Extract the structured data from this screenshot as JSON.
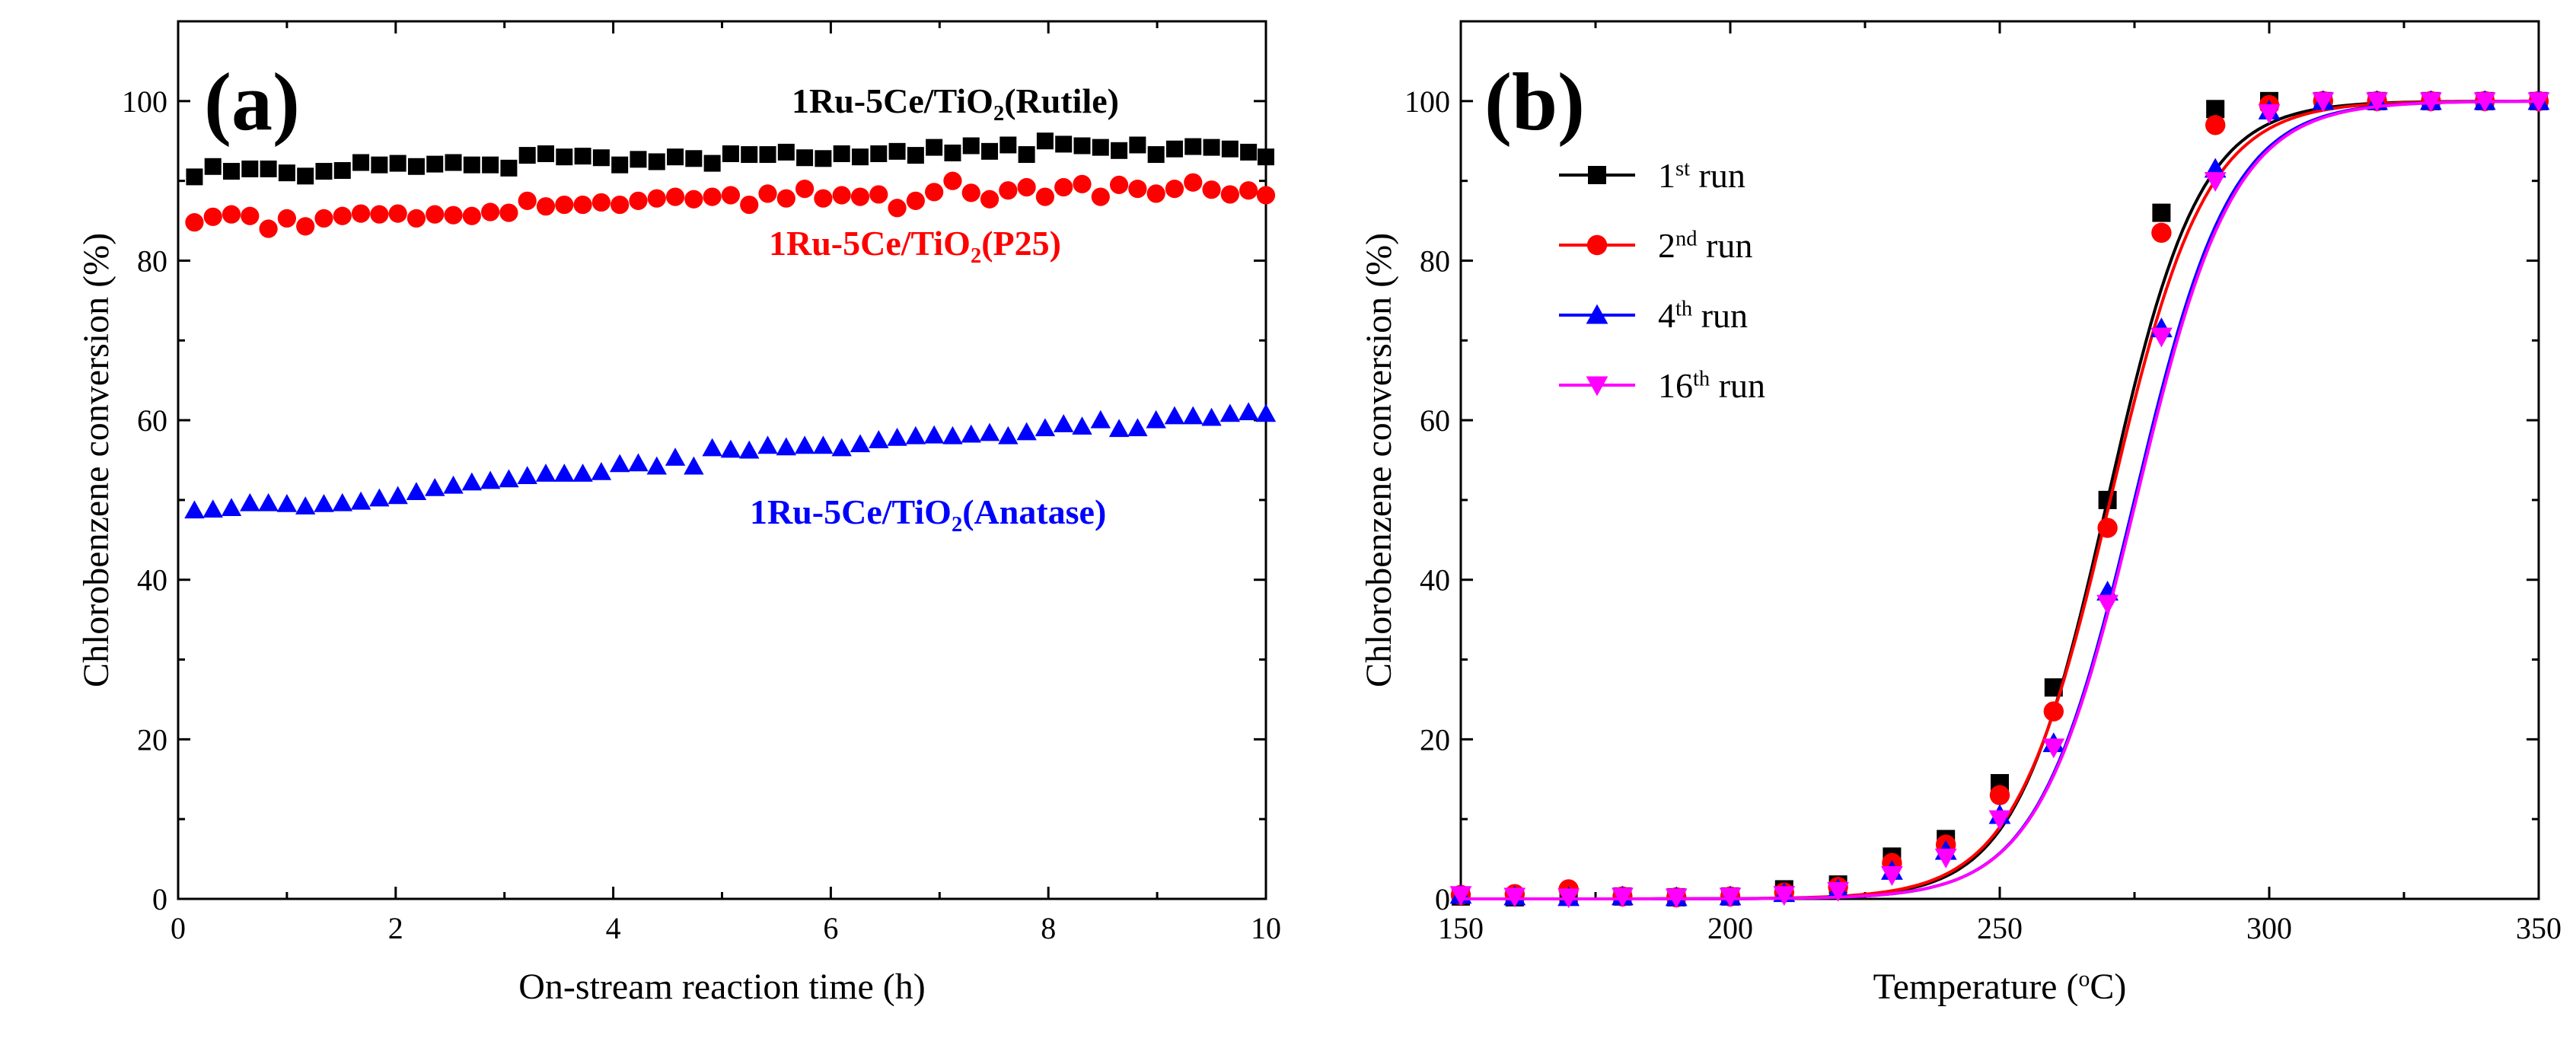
{
  "chart_data": [
    {
      "type": "scatter",
      "panel": "(a)",
      "xlabel": "On-stream reaction time (h)",
      "ylabel": "Chlorobenzene conversion (%)",
      "xlim": [
        0,
        10
      ],
      "ylim": [
        0,
        110
      ],
      "xticks": [
        0,
        2,
        4,
        6,
        8,
        10
      ],
      "yticks": [
        0,
        20,
        40,
        60,
        80,
        100
      ],
      "series": [
        {
          "name": "1Ru-5Ce/TiO2(Rutile)",
          "label_parts": [
            "1Ru-5Ce/TiO",
            "2",
            "(Rutile)"
          ],
          "color": "#000000",
          "marker": "square",
          "x": [
            0.15,
            0.32,
            0.49,
            0.66,
            0.83,
            1.0,
            1.17,
            1.34,
            1.51,
            1.68,
            1.85,
            2.02,
            2.19,
            2.36,
            2.53,
            2.7,
            2.87,
            3.04,
            3.21,
            3.38,
            3.55,
            3.72,
            3.89,
            4.06,
            4.23,
            4.4,
            4.57,
            4.74,
            4.91,
            5.08,
            5.25,
            5.42,
            5.59,
            5.76,
            5.93,
            6.1,
            6.27,
            6.44,
            6.61,
            6.78,
            6.95,
            7.12,
            7.29,
            7.46,
            7.63,
            7.8,
            7.97,
            8.14,
            8.31,
            8.48,
            8.65,
            8.82,
            8.99,
            9.16,
            9.33,
            9.5,
            9.67,
            9.84,
            10.0
          ],
          "y": [
            90.5,
            91.8,
            91.2,
            91.5,
            91.5,
            91.0,
            90.6,
            91.2,
            91.3,
            92.3,
            92.0,
            92.2,
            91.8,
            92.1,
            92.3,
            92.0,
            92.0,
            91.6,
            93.2,
            93.4,
            93.0,
            93.1,
            92.9,
            92.0,
            92.7,
            92.4,
            93.0,
            92.8,
            92.2,
            93.4,
            93.3,
            93.3,
            93.6,
            92.9,
            92.8,
            93.4,
            93.0,
            93.4,
            93.7,
            93.2,
            94.2,
            93.5,
            94.4,
            93.7,
            94.5,
            93.3,
            95.0,
            94.6,
            94.4,
            94.2,
            93.8,
            94.5,
            93.3,
            94.0,
            94.3,
            94.2,
            94.0,
            93.6,
            93.0
          ]
        },
        {
          "name": "1Ru-5Ce/TiO2(P25)",
          "label_parts": [
            "1Ru-5Ce/TiO",
            "2",
            "(P25)"
          ],
          "color": "#ff0000",
          "marker": "circle",
          "x": [
            0.15,
            0.32,
            0.49,
            0.66,
            0.83,
            1.0,
            1.17,
            1.34,
            1.51,
            1.68,
            1.85,
            2.02,
            2.19,
            2.36,
            2.53,
            2.7,
            2.87,
            3.04,
            3.21,
            3.38,
            3.55,
            3.72,
            3.89,
            4.06,
            4.23,
            4.4,
            4.57,
            4.74,
            4.91,
            5.08,
            5.25,
            5.42,
            5.59,
            5.76,
            5.93,
            6.1,
            6.27,
            6.44,
            6.61,
            6.78,
            6.95,
            7.12,
            7.29,
            7.46,
            7.63,
            7.8,
            7.97,
            8.14,
            8.31,
            8.48,
            8.65,
            8.82,
            8.99,
            9.16,
            9.33,
            9.5,
            9.67,
            9.84,
            10.0
          ],
          "y": [
            84.8,
            85.5,
            85.8,
            85.6,
            84.0,
            85.3,
            84.3,
            85.3,
            85.6,
            85.9,
            85.8,
            85.9,
            85.3,
            85.8,
            85.7,
            85.6,
            86.1,
            86.0,
            87.5,
            86.8,
            87.0,
            87.0,
            87.3,
            87.0,
            87.5,
            87.8,
            88.0,
            87.7,
            88.0,
            88.2,
            87.0,
            88.4,
            87.8,
            89.0,
            87.8,
            88.2,
            88.0,
            88.3,
            86.6,
            87.5,
            88.6,
            90.0,
            88.5,
            87.7,
            88.8,
            89.2,
            88.0,
            89.2,
            89.6,
            88.0,
            89.5,
            89.0,
            88.4,
            89.0,
            89.8,
            88.9,
            88.3,
            88.8,
            88.2
          ]
        },
        {
          "name": "1Ru-5Ce/TiO2(Anatase)",
          "label_parts": [
            "1Ru-5Ce/TiO",
            "2",
            "(Anatase)"
          ],
          "color": "#0000ff",
          "marker": "triangle-up",
          "x": [
            0.15,
            0.32,
            0.49,
            0.66,
            0.83,
            1.0,
            1.17,
            1.34,
            1.51,
            1.68,
            1.85,
            2.02,
            2.19,
            2.36,
            2.53,
            2.7,
            2.87,
            3.04,
            3.21,
            3.38,
            3.55,
            3.72,
            3.89,
            4.06,
            4.23,
            4.4,
            4.57,
            4.74,
            4.91,
            5.08,
            5.25,
            5.42,
            5.59,
            5.76,
            5.93,
            6.1,
            6.27,
            6.44,
            6.61,
            6.78,
            6.95,
            7.12,
            7.29,
            7.46,
            7.63,
            7.8,
            7.97,
            8.14,
            8.31,
            8.48,
            8.65,
            8.82,
            8.99,
            9.16,
            9.33,
            9.5,
            9.67,
            9.84,
            10.0
          ],
          "y": [
            48.7,
            48.8,
            49.0,
            49.6,
            49.6,
            49.5,
            49.2,
            49.5,
            49.6,
            49.8,
            50.2,
            50.5,
            51.0,
            51.5,
            51.8,
            52.2,
            52.4,
            52.6,
            53.0,
            53.3,
            53.3,
            53.3,
            53.5,
            54.5,
            54.6,
            54.2,
            55.3,
            54.2,
            56.5,
            56.3,
            56.2,
            56.8,
            56.6,
            56.8,
            56.8,
            56.5,
            57.0,
            57.5,
            57.8,
            58.0,
            58.1,
            58.0,
            58.2,
            58.4,
            58.0,
            58.5,
            59.0,
            59.5,
            59.2,
            60.0,
            58.9,
            59.0,
            60.0,
            60.5,
            60.5,
            60.3,
            60.8,
            61.0,
            60.8
          ]
        }
      ]
    },
    {
      "type": "line",
      "panel": "(b)",
      "xlabel_parts": [
        "Temperature (",
        "o",
        "C)"
      ],
      "ylabel": "Chlorobenzene conversion (%)",
      "xlim": [
        150,
        350
      ],
      "ylim": [
        0,
        110
      ],
      "xticks": [
        150,
        200,
        250,
        300,
        350
      ],
      "yticks": [
        0,
        20,
        40,
        60,
        80,
        100
      ],
      "legend": "upper-left",
      "series": [
        {
          "name": "1st run",
          "label_parts": [
            "1",
            "st",
            " run"
          ],
          "color": "#000000",
          "marker": "square",
          "curve_T50": 270.0,
          "curve_k": 0.118,
          "x": [
            150,
            160,
            170,
            180,
            190,
            200,
            210,
            220,
            230,
            240,
            250,
            260,
            270,
            280,
            290,
            300,
            310,
            320,
            330,
            340,
            350
          ],
          "y": [
            0.3,
            0.2,
            0.4,
            0.3,
            0.2,
            0.3,
            1.2,
            1.8,
            5.3,
            7.5,
            14.5,
            26.5,
            50.0,
            86.0,
            99.0,
            100,
            100,
            100,
            100,
            100,
            100
          ]
        },
        {
          "name": "2nd run",
          "label_parts": [
            "2",
            "nd",
            " run"
          ],
          "color": "#ff0000",
          "marker": "circle",
          "curve_T50": 270.5,
          "curve_k": 0.113,
          "x": [
            150,
            160,
            170,
            180,
            190,
            200,
            210,
            220,
            230,
            240,
            250,
            260,
            270,
            280,
            290,
            300,
            310,
            320,
            330,
            340,
            350
          ],
          "y": [
            0.5,
            0.6,
            1.2,
            0.3,
            0.2,
            0.3,
            0.8,
            1.5,
            4.5,
            6.8,
            13.0,
            23.5,
            46.5,
            83.5,
            97.0,
            99.5,
            100,
            100,
            100,
            100,
            100
          ]
        },
        {
          "name": "4th run",
          "label_parts": [
            "4",
            "th",
            " run"
          ],
          "color": "#0000ff",
          "marker": "triangle-up",
          "curve_T50": 275.0,
          "curve_k": 0.112,
          "x": [
            150,
            160,
            170,
            180,
            190,
            200,
            210,
            220,
            230,
            240,
            250,
            260,
            270,
            280,
            290,
            300,
            310,
            320,
            330,
            340,
            350
          ],
          "y": [
            0.5,
            0.3,
            0.2,
            0.3,
            0.2,
            0.3,
            0.7,
            1.2,
            3.5,
            6.0,
            10.5,
            19.5,
            38.5,
            71.5,
            91.5,
            98.8,
            100,
            100,
            100,
            100,
            100
          ]
        },
        {
          "name": "16th run",
          "label_parts": [
            "16",
            "th",
            " run"
          ],
          "color": "#ff00ff",
          "marker": "triangle-down",
          "curve_T50": 275.3,
          "curve_k": 0.111,
          "x": [
            150,
            160,
            170,
            180,
            190,
            200,
            210,
            220,
            230,
            240,
            250,
            260,
            270,
            280,
            290,
            300,
            310,
            320,
            330,
            340,
            350
          ],
          "y": [
            0.5,
            0.3,
            0.2,
            0.3,
            0.2,
            0.3,
            0.5,
            1.0,
            3.0,
            5.2,
            10.0,
            19.0,
            37.0,
            70.5,
            90.0,
            98.5,
            100,
            100,
            100,
            100,
            100
          ]
        }
      ]
    }
  ]
}
